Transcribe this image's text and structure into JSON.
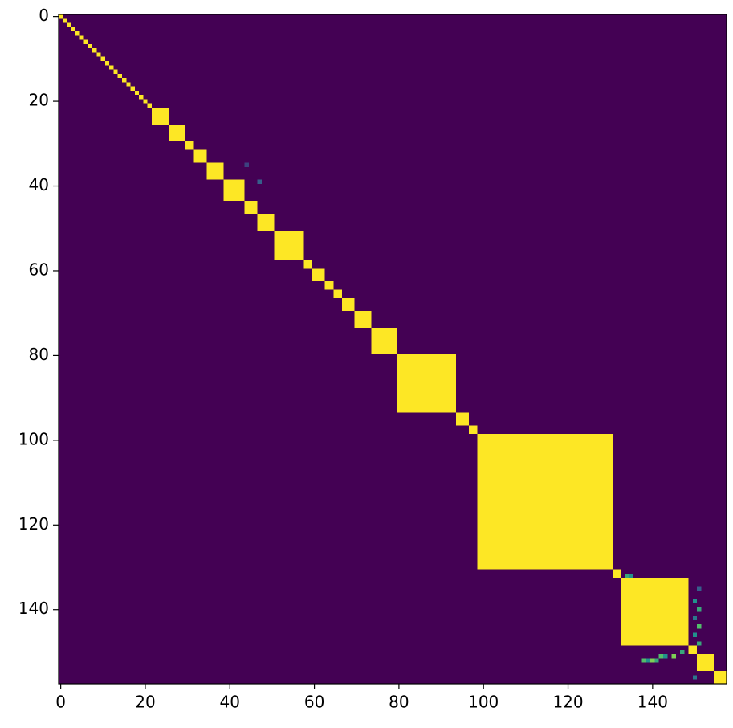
{
  "chart_data": {
    "type": "heatmap",
    "xlim": [
      -0.5,
      157.5
    ],
    "ylim": [
      157.5,
      -0.5
    ],
    "xticks": [
      0,
      20,
      40,
      60,
      80,
      100,
      120,
      140
    ],
    "yticks": [
      0,
      20,
      40,
      60,
      80,
      100,
      120,
      140
    ],
    "colormap": [
      "#440154",
      "#3b528b",
      "#21918c",
      "#5ec962",
      "#fde725"
    ],
    "vlim": [
      0,
      1
    ],
    "fill_value": 0,
    "blocks": [
      {
        "start": 0,
        "end": 0,
        "value": 1
      },
      {
        "start": 1,
        "end": 1,
        "value": 1
      },
      {
        "start": 2,
        "end": 2,
        "value": 1
      },
      {
        "start": 3,
        "end": 3,
        "value": 1
      },
      {
        "start": 4,
        "end": 4,
        "value": 1
      },
      {
        "start": 5,
        "end": 5,
        "value": 1
      },
      {
        "start": 6,
        "end": 6,
        "value": 1
      },
      {
        "start": 7,
        "end": 7,
        "value": 1
      },
      {
        "start": 8,
        "end": 8,
        "value": 1
      },
      {
        "start": 9,
        "end": 9,
        "value": 1
      },
      {
        "start": 10,
        "end": 10,
        "value": 1
      },
      {
        "start": 11,
        "end": 11,
        "value": 1
      },
      {
        "start": 12,
        "end": 12,
        "value": 1
      },
      {
        "start": 13,
        "end": 13,
        "value": 1
      },
      {
        "start": 14,
        "end": 14,
        "value": 1
      },
      {
        "start": 15,
        "end": 15,
        "value": 1
      },
      {
        "start": 16,
        "end": 16,
        "value": 1
      },
      {
        "start": 17,
        "end": 17,
        "value": 1
      },
      {
        "start": 18,
        "end": 18,
        "value": 1
      },
      {
        "start": 19,
        "end": 19,
        "value": 1
      },
      {
        "start": 20,
        "end": 20,
        "value": 1
      },
      {
        "start": 21,
        "end": 21,
        "value": 1
      },
      {
        "start": 22,
        "end": 25,
        "value": 1
      },
      {
        "start": 26,
        "end": 29,
        "value": 1
      },
      {
        "start": 30,
        "end": 31,
        "value": 1
      },
      {
        "start": 32,
        "end": 34,
        "value": 1
      },
      {
        "start": 35,
        "end": 38,
        "value": 1
      },
      {
        "start": 39,
        "end": 43,
        "value": 1
      },
      {
        "start": 44,
        "end": 46,
        "value": 1
      },
      {
        "start": 47,
        "end": 50,
        "value": 1
      },
      {
        "start": 51,
        "end": 57,
        "value": 1
      },
      {
        "start": 58,
        "end": 59,
        "value": 1
      },
      {
        "start": 60,
        "end": 62,
        "value": 1
      },
      {
        "start": 63,
        "end": 64,
        "value": 1
      },
      {
        "start": 65,
        "end": 66,
        "value": 1
      },
      {
        "start": 67,
        "end": 69,
        "value": 1
      },
      {
        "start": 70,
        "end": 73,
        "value": 1
      },
      {
        "start": 74,
        "end": 79,
        "value": 1
      },
      {
        "start": 80,
        "end": 93,
        "value": 1
      },
      {
        "start": 94,
        "end": 96,
        "value": 1
      },
      {
        "start": 97,
        "end": 98,
        "value": 1
      },
      {
        "start": 99,
        "end": 130,
        "value": 1
      },
      {
        "start": 131,
        "end": 132,
        "value": 1
      },
      {
        "start": 133,
        "end": 148,
        "value": 1
      },
      {
        "start": 149,
        "end": 150,
        "value": 1
      },
      {
        "start": 151,
        "end": 154,
        "value": 1
      },
      {
        "start": 155,
        "end": 157,
        "value": 1
      }
    ],
    "cells": [
      {
        "row": 132,
        "col": 134,
        "value": 0.6
      },
      {
        "row": 132,
        "col": 135,
        "value": 0.5
      },
      {
        "row": 152,
        "col": 138,
        "value": 0.7
      },
      {
        "row": 152,
        "col": 139,
        "value": 0.5
      },
      {
        "row": 152,
        "col": 140,
        "value": 0.8
      },
      {
        "row": 152,
        "col": 141,
        "value": 0.6
      },
      {
        "row": 151,
        "col": 142,
        "value": 0.7
      },
      {
        "row": 151,
        "col": 143,
        "value": 0.5
      },
      {
        "row": 151,
        "col": 145,
        "value": 0.8
      },
      {
        "row": 150,
        "col": 147,
        "value": 0.6
      },
      {
        "row": 138,
        "col": 150,
        "value": 0.5
      },
      {
        "row": 140,
        "col": 151,
        "value": 0.6
      },
      {
        "row": 142,
        "col": 150,
        "value": 0.4
      },
      {
        "row": 144,
        "col": 151,
        "value": 0.7
      },
      {
        "row": 146,
        "col": 150,
        "value": 0.5
      },
      {
        "row": 148,
        "col": 151,
        "value": 0.6
      },
      {
        "row": 135,
        "col": 151,
        "value": 0.3
      },
      {
        "row": 156,
        "col": 150,
        "value": 0.4
      },
      {
        "row": 35,
        "col": 44,
        "value": 0.2
      },
      {
        "row": 39,
        "col": 47,
        "value": 0.3
      }
    ]
  }
}
